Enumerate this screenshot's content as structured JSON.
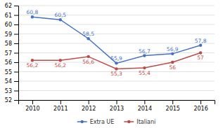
{
  "chart_data": {
    "type": "line",
    "x": [
      2010,
      2011,
      2012,
      2013,
      2014,
      2015,
      2016
    ],
    "series": [
      {
        "name": "Extra UE",
        "color": "#4472C4",
        "marker": "circle",
        "values": [
          60.8,
          60.5,
          58.5,
          55.9,
          56.7,
          56.9,
          57.8
        ],
        "value_labels": [
          "60,8",
          "60,5",
          "58,5",
          "55,9",
          "56,7",
          "56,9",
          "57,8"
        ]
      },
      {
        "name": "Italiani",
        "color": "#BE4B48",
        "marker": "circle",
        "values": [
          56.2,
          56.2,
          56.6,
          55.3,
          55.4,
          56.0,
          57.0
        ],
        "value_labels": [
          "56,2",
          "56,2",
          "56,6",
          "55,3",
          "55,4",
          "56",
          "57"
        ]
      }
    ],
    "xlim": [
      2009.5,
      2016.5
    ],
    "xticks": [
      2010,
      2011,
      2012,
      2013,
      2014,
      2015,
      2016
    ],
    "ylim": [
      52,
      62
    ],
    "yticks": [
      52,
      53,
      54,
      55,
      56,
      57,
      58,
      59,
      60,
      61,
      62
    ],
    "grid": true,
    "legend": "bottom",
    "data_labels": true
  }
}
